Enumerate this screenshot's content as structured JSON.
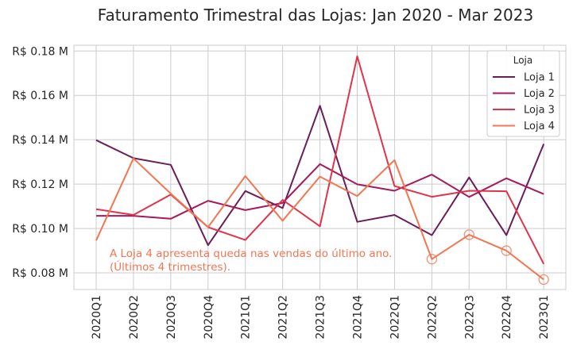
{
  "chart_data": {
    "type": "line",
    "title": "Faturamento Trimestral das Lojas: Jan 2020 - Mar 2023",
    "xlabel": "",
    "ylabel": "",
    "categories": [
      "2020Q1",
      "2020Q2",
      "2020Q3",
      "2020Q4",
      "2021Q1",
      "2021Q2",
      "2021Q3",
      "2021Q4",
      "2022Q1",
      "2022Q2",
      "2022Q3",
      "2022Q4",
      "2023Q1"
    ],
    "yticks": [
      0.08,
      0.1,
      0.12,
      0.14,
      0.16,
      0.18
    ],
    "ytick_labels": [
      "R$ 0.08 M",
      "R$ 0.10 M",
      "R$ 0.12 M",
      "R$ 0.14 M",
      "R$ 0.16 M",
      "R$ 0.18 M"
    ],
    "ylim": [
      0.0725,
      0.1826
    ],
    "grid": true,
    "legend": {
      "title": "Loja",
      "placement": "top-right"
    },
    "series": [
      {
        "name": "Loja 1",
        "color": "#6b1d58",
        "values": [
          0.1398,
          0.1317,
          0.1287,
          0.0925,
          0.1169,
          0.1092,
          0.1553,
          0.103,
          0.1061,
          0.097,
          0.123,
          0.097,
          0.1381
        ]
      },
      {
        "name": "Loja 2",
        "color": "#a7195a",
        "values": [
          0.1057,
          0.1057,
          0.1044,
          0.1125,
          0.1083,
          0.1115,
          0.129,
          0.1199,
          0.117,
          0.1243,
          0.1142,
          0.1226,
          0.1155
        ]
      },
      {
        "name": "Loja 3",
        "color": "#e0344a",
        "values": [
          0.1087,
          0.1061,
          0.1153,
          0.1006,
          0.0948,
          0.1129,
          0.101,
          0.1776,
          0.1191,
          0.1143,
          0.117,
          0.1168,
          0.084
        ]
      },
      {
        "name": "Loja 4",
        "color": "#f37551",
        "values": [
          0.0946,
          0.1316,
          0.1157,
          0.1006,
          0.1236,
          0.1035,
          0.1234,
          0.1146,
          0.1308,
          0.0862,
          0.0972,
          0.09,
          0.077
        ]
      }
    ],
    "highlight": {
      "series": "Loja 4",
      "points": [
        9,
        10,
        11,
        12
      ]
    },
    "annotation": {
      "lines": [
        "A Loja 4 apresenta queda nas vendas do último ano.",
        "(Últimos 4 trimestres)."
      ],
      "color": "#f37551"
    }
  }
}
